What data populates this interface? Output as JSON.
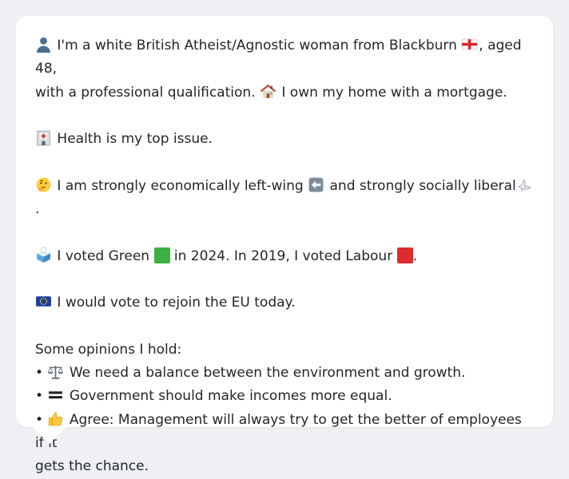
{
  "profile": {
    "intro_part1": "I'm a white British Atheist/Agnostic woman from Blackburn",
    "intro_part2": ", aged 48,",
    "intro_part3": "with a professional qualification.",
    "intro_part4": "I own my home with a mortgage."
  },
  "issue": {
    "text": "Health is my top issue."
  },
  "ideology": {
    "part1": "I am strongly economically left-wing",
    "part2": "and strongly socially liberal",
    "part3": "."
  },
  "vote": {
    "part1": "I voted Green",
    "part2": "in 2024. In 2019, I voted Labour",
    "part3": ".",
    "green_color": "#3cb043",
    "labour_color": "#dd2c2c"
  },
  "eu": {
    "text": "I would vote to rejoin the EU today."
  },
  "opinions": {
    "heading": "Some opinions I hold:",
    "bullet": "•",
    "items": [
      "We need a balance between the environment and growth.",
      "Government should make incomes more equal.",
      "Agree: Management will always try to get the better of employees if it",
      "gets the chance."
    ]
  },
  "icons": [
    "person-silhouette-icon",
    "england-flag-icon",
    "house-icon",
    "hospital-icon",
    "thinking-face-icon",
    "left-arrow-icon",
    "dove-icon",
    "ballot-box-icon",
    "green-square-icon",
    "red-square-icon",
    "eu-flag-icon",
    "balance-scale-icon",
    "equals-icon",
    "thumbs-up-icon"
  ]
}
